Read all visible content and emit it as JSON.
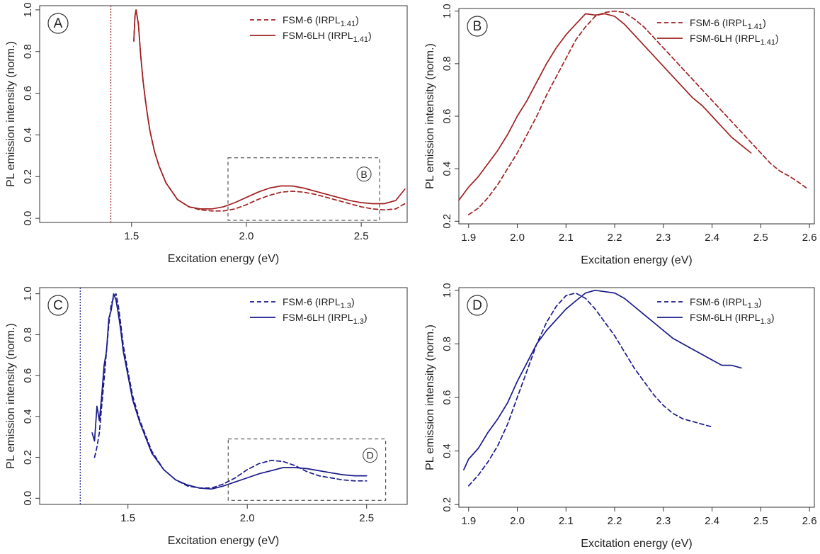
{
  "chart_data": [
    {
      "panel_label": "A",
      "type": "line",
      "xlabel": "Excitation energy (eV)",
      "ylabel": "PL emission intensity (norm.)",
      "xlim": [
        1.1,
        2.7
      ],
      "ylim": [
        -0.02,
        1.02
      ],
      "xticks": [
        "1.5",
        "2.0",
        "2.5"
      ],
      "yticks": [
        "0.0",
        "0.2",
        "0.4",
        "0.6",
        "0.8",
        "1.0"
      ],
      "color": "#a02020",
      "vline_x": 1.41,
      "zoom_box": {
        "x": [
          1.92,
          2.58
        ],
        "y": [
          -0.01,
          0.29
        ],
        "label": "B"
      },
      "legend": [
        {
          "base": "FSM-6 (IRPL",
          "sub": "1.41",
          "close": ")",
          "dash": true
        },
        {
          "base": "FSM-6LH (IRPL",
          "sub": "1.41",
          "close": ")",
          "dash": false
        }
      ],
      "series": [
        {
          "name": "FSM-6 (IRPL1.41)",
          "dash": true,
          "x": [
            1.51,
            1.515,
            1.52,
            1.53,
            1.54,
            1.55,
            1.56,
            1.57,
            1.58,
            1.6,
            1.62,
            1.65,
            1.7,
            1.75,
            1.8,
            1.85,
            1.9,
            1.95,
            2.0,
            2.05,
            2.1,
            2.15,
            2.2,
            2.25,
            2.3,
            2.35,
            2.4,
            2.45,
            2.5,
            2.55,
            2.6,
            2.65,
            2.69
          ],
          "values": [
            0.85,
            0.97,
            1.0,
            0.93,
            0.78,
            0.66,
            0.57,
            0.49,
            0.42,
            0.32,
            0.25,
            0.17,
            0.09,
            0.055,
            0.04,
            0.035,
            0.035,
            0.045,
            0.065,
            0.09,
            0.11,
            0.125,
            0.13,
            0.125,
            0.115,
            0.1,
            0.085,
            0.07,
            0.055,
            0.045,
            0.04,
            0.045,
            0.07
          ]
        },
        {
          "name": "FSM-6LH (IRPL1.41)",
          "dash": false,
          "x": [
            1.51,
            1.515,
            1.52,
            1.53,
            1.54,
            1.55,
            1.56,
            1.57,
            1.58,
            1.6,
            1.62,
            1.65,
            1.7,
            1.75,
            1.8,
            1.85,
            1.9,
            1.95,
            2.0,
            2.05,
            2.1,
            2.15,
            2.2,
            2.25,
            2.3,
            2.35,
            2.4,
            2.45,
            2.5,
            2.55,
            2.6,
            2.65,
            2.69
          ],
          "values": [
            0.85,
            0.97,
            1.0,
            0.93,
            0.78,
            0.66,
            0.57,
            0.49,
            0.42,
            0.32,
            0.25,
            0.17,
            0.09,
            0.055,
            0.045,
            0.045,
            0.055,
            0.075,
            0.1,
            0.125,
            0.145,
            0.155,
            0.155,
            0.145,
            0.13,
            0.115,
            0.1,
            0.085,
            0.075,
            0.07,
            0.07,
            0.085,
            0.14
          ]
        }
      ]
    },
    {
      "panel_label": "B",
      "type": "line",
      "xlabel": "Excitation energy (eV)",
      "ylabel": "PL emission intensity (norm.)",
      "xlim": [
        1.88,
        2.61
      ],
      "ylim": [
        0.19,
        1.01
      ],
      "xticks": [
        "1.9",
        "2.0",
        "2.1",
        "2.2",
        "2.3",
        "2.4",
        "2.5",
        "2.6"
      ],
      "yticks": [
        "0.2",
        "0.4",
        "0.6",
        "0.8",
        "1.0"
      ],
      "color": "#a02020",
      "legend": [
        {
          "base": "FSM-6 (IRPL",
          "sub": "1.41",
          "close": ")",
          "dash": true
        },
        {
          "base": "FSM-6LH (IRPL",
          "sub": "1.41",
          "close": ")",
          "dash": false
        }
      ],
      "series": [
        {
          "name": "FSM-6 (IRPL1.41)",
          "dash": true,
          "x": [
            1.9,
            1.92,
            1.94,
            1.96,
            1.98,
            2.0,
            2.02,
            2.04,
            2.06,
            2.08,
            2.1,
            2.12,
            2.14,
            2.16,
            2.18,
            2.2,
            2.22,
            2.24,
            2.26,
            2.28,
            2.3,
            2.32,
            2.34,
            2.36,
            2.38,
            2.4,
            2.42,
            2.44,
            2.46,
            2.48,
            2.5,
            2.52,
            2.54,
            2.56,
            2.58,
            2.595
          ],
          "values": [
            0.225,
            0.25,
            0.29,
            0.34,
            0.4,
            0.46,
            0.53,
            0.6,
            0.68,
            0.75,
            0.82,
            0.89,
            0.94,
            0.98,
            0.995,
            1.0,
            0.995,
            0.97,
            0.94,
            0.9,
            0.86,
            0.82,
            0.78,
            0.74,
            0.7,
            0.66,
            0.62,
            0.58,
            0.54,
            0.5,
            0.46,
            0.42,
            0.39,
            0.37,
            0.345,
            0.325
          ]
        },
        {
          "name": "FSM-6LH (IRPL1.41)",
          "dash": false,
          "x": [
            1.88,
            1.9,
            1.92,
            1.94,
            1.96,
            1.98,
            2.0,
            2.02,
            2.04,
            2.06,
            2.08,
            2.1,
            2.12,
            2.14,
            2.16,
            2.18,
            2.2,
            2.22,
            2.24,
            2.26,
            2.28,
            2.3,
            2.32,
            2.34,
            2.36,
            2.38,
            2.4,
            2.42,
            2.44,
            2.46,
            2.48
          ],
          "values": [
            0.28,
            0.33,
            0.37,
            0.42,
            0.47,
            0.53,
            0.6,
            0.66,
            0.73,
            0.8,
            0.86,
            0.91,
            0.95,
            0.99,
            0.985,
            0.99,
            0.98,
            0.95,
            0.91,
            0.87,
            0.83,
            0.79,
            0.75,
            0.71,
            0.67,
            0.64,
            0.6,
            0.56,
            0.52,
            0.49,
            0.46
          ]
        }
      ]
    },
    {
      "panel_label": "C",
      "type": "line",
      "xlabel": "Excitation energy (eV)",
      "ylabel": "PL emission intensity (norm.)",
      "xlim": [
        1.13,
        2.67
      ],
      "ylim": [
        -0.03,
        1.03
      ],
      "xticks": [
        "1.5",
        "2.0",
        "2.5"
      ],
      "yticks": [
        "0.0",
        "0.2",
        "0.4",
        "0.6",
        "0.8",
        "1.0"
      ],
      "color": "#1a1a8c",
      "vline_x": 1.3,
      "zoom_box": {
        "x": [
          1.92,
          2.58
        ],
        "y": [
          -0.01,
          0.29
        ],
        "label": "D"
      },
      "legend": [
        {
          "base": "FSM-6 (IRPL",
          "sub": "1.3",
          "close": ")",
          "dash": true
        },
        {
          "base": "FSM-6LH (IRPL",
          "sub": "1.3",
          "close": ")",
          "dash": false
        }
      ],
      "series": [
        {
          "name": "FSM-6 (IRPL1.3)",
          "dash": true,
          "x": [
            1.36,
            1.37,
            1.38,
            1.39,
            1.4,
            1.41,
            1.42,
            1.43,
            1.44,
            1.45,
            1.46,
            1.47,
            1.48,
            1.5,
            1.52,
            1.55,
            1.6,
            1.65,
            1.7,
            1.75,
            1.8,
            1.85,
            1.9,
            1.95,
            2.0,
            2.05,
            2.1,
            2.15,
            2.2,
            2.25,
            2.3,
            2.35,
            2.4,
            2.45,
            2.5
          ],
          "values": [
            0.2,
            0.25,
            0.32,
            0.45,
            0.58,
            0.72,
            0.85,
            0.95,
            0.98,
            1.0,
            0.94,
            0.85,
            0.75,
            0.62,
            0.5,
            0.38,
            0.23,
            0.14,
            0.09,
            0.06,
            0.05,
            0.05,
            0.07,
            0.1,
            0.14,
            0.17,
            0.185,
            0.18,
            0.16,
            0.13,
            0.11,
            0.1,
            0.09,
            0.085,
            0.085
          ]
        },
        {
          "name": "FSM-6LH (IRPL1.3)",
          "dash": false,
          "x": [
            1.35,
            1.36,
            1.37,
            1.38,
            1.39,
            1.4,
            1.41,
            1.42,
            1.43,
            1.44,
            1.45,
            1.46,
            1.47,
            1.48,
            1.5,
            1.52,
            1.55,
            1.6,
            1.65,
            1.7,
            1.75,
            1.8,
            1.85,
            1.9,
            1.95,
            2.0,
            2.05,
            2.1,
            2.15,
            2.2,
            2.25,
            2.3,
            2.35,
            2.4,
            2.45,
            2.5
          ],
          "values": [
            0.32,
            0.28,
            0.45,
            0.38,
            0.5,
            0.65,
            0.72,
            0.88,
            0.92,
            1.0,
            0.97,
            0.9,
            0.82,
            0.72,
            0.6,
            0.48,
            0.37,
            0.22,
            0.14,
            0.09,
            0.065,
            0.05,
            0.045,
            0.06,
            0.08,
            0.1,
            0.12,
            0.135,
            0.15,
            0.15,
            0.145,
            0.135,
            0.125,
            0.115,
            0.11,
            0.11
          ]
        }
      ]
    },
    {
      "panel_label": "D",
      "type": "line",
      "xlabel": "Excitation energy (eV)",
      "ylabel": "PL emission intensity (norm.)",
      "xlim": [
        1.88,
        2.61
      ],
      "ylim": [
        0.19,
        1.01
      ],
      "xticks": [
        "1.9",
        "2.0",
        "2.1",
        "2.2",
        "2.3",
        "2.4",
        "2.5",
        "2.6"
      ],
      "yticks": [
        "0.2",
        "0.4",
        "0.6",
        "0.8",
        "1.0"
      ],
      "color": "#1a1a8c",
      "legend": [
        {
          "base": "FSM-6 (IRPL",
          "sub": "1.3",
          "close": ")",
          "dash": true
        },
        {
          "base": "FSM-6LH (IRPL",
          "sub": "1.3",
          "close": ")",
          "dash": false
        }
      ],
      "series": [
        {
          "name": "FSM-6 (IRPL1.3)",
          "dash": true,
          "x": [
            1.9,
            1.92,
            1.94,
            1.96,
            1.98,
            2.0,
            2.02,
            2.04,
            2.06,
            2.08,
            2.1,
            2.12,
            2.14,
            2.16,
            2.18,
            2.2,
            2.22,
            2.24,
            2.26,
            2.28,
            2.3,
            2.32,
            2.34,
            2.36,
            2.38,
            2.4
          ],
          "values": [
            0.27,
            0.31,
            0.36,
            0.42,
            0.5,
            0.6,
            0.7,
            0.8,
            0.88,
            0.94,
            0.98,
            0.99,
            0.97,
            0.93,
            0.88,
            0.83,
            0.77,
            0.71,
            0.66,
            0.61,
            0.57,
            0.54,
            0.52,
            0.51,
            0.5,
            0.49
          ]
        },
        {
          "name": "FSM-6LH (IRPL1.3)",
          "dash": false,
          "x": [
            1.89,
            1.9,
            1.92,
            1.94,
            1.96,
            1.98,
            2.0,
            2.02,
            2.04,
            2.06,
            2.08,
            2.1,
            2.12,
            2.14,
            2.16,
            2.18,
            2.2,
            2.22,
            2.24,
            2.26,
            2.28,
            2.3,
            2.32,
            2.34,
            2.36,
            2.38,
            2.4,
            2.42,
            2.44,
            2.46
          ],
          "values": [
            0.33,
            0.37,
            0.41,
            0.47,
            0.52,
            0.58,
            0.66,
            0.73,
            0.8,
            0.85,
            0.89,
            0.93,
            0.96,
            0.99,
            1.0,
            0.995,
            0.99,
            0.97,
            0.94,
            0.91,
            0.88,
            0.85,
            0.82,
            0.8,
            0.78,
            0.76,
            0.74,
            0.72,
            0.72,
            0.71
          ]
        }
      ]
    }
  ]
}
